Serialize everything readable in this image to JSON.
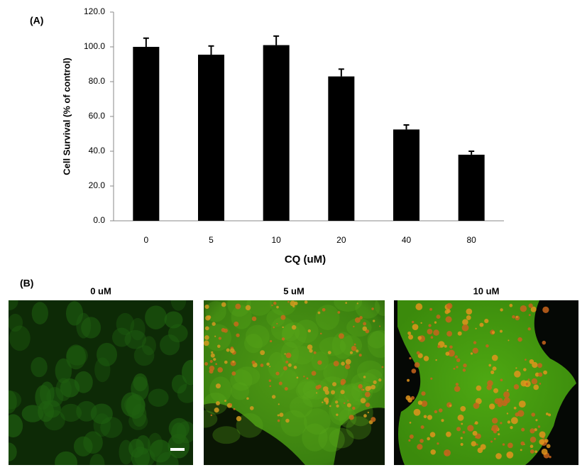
{
  "chart_data": {
    "type": "bar",
    "panel_label": "(A)",
    "y_label": "Cell Survival (% of control)",
    "x_label": "CQ (uM)",
    "categories": [
      "0",
      "5",
      "10",
      "20",
      "40",
      "80"
    ],
    "values": [
      100,
      95.5,
      101,
      83,
      52.5,
      38
    ],
    "errors": [
      5,
      5,
      5.2,
      4.2,
      2.6,
      2
    ],
    "color": "#000000",
    "ylim": [
      0,
      120
    ],
    "yticks": [
      {
        "value": 0,
        "label": "0.0"
      },
      {
        "value": 20,
        "label": "20.0"
      },
      {
        "value": 40,
        "label": "40.0"
      },
      {
        "value": 60,
        "label": "60.0"
      },
      {
        "value": 80,
        "label": "80.0"
      },
      {
        "value": 100,
        "label": "100.0"
      },
      {
        "value": 120,
        "label": "120.0"
      }
    ],
    "grid": false
  },
  "panel_b": {
    "label": "(B)",
    "images": [
      {
        "label": "0 uM"
      },
      {
        "label": "5 uM"
      },
      {
        "label": "10 uM"
      }
    ]
  }
}
